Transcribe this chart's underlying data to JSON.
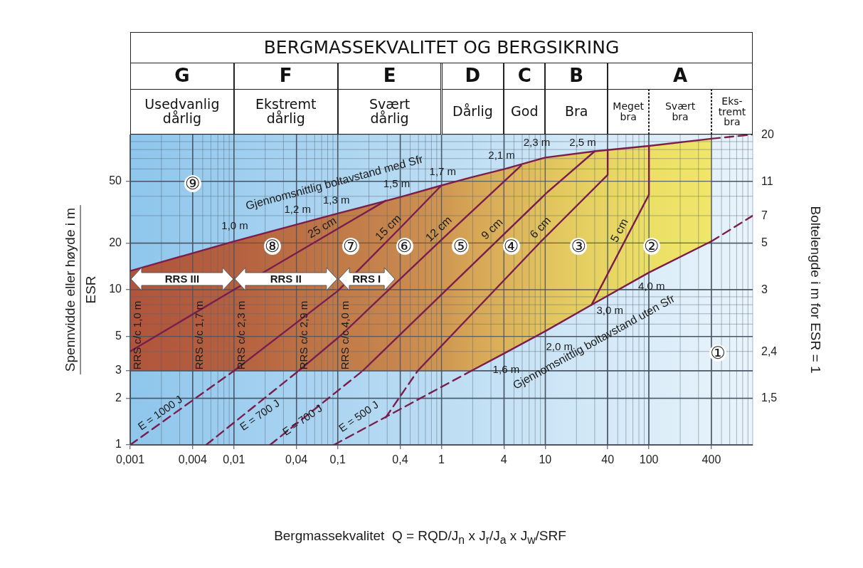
{
  "chart_data": {
    "type": "line",
    "title": "BERGMASSEKVALITET OG BERGSIKRING",
    "xlabel": "Bergmassekvalitet  Q = RQD/J$_{n}$ x J$_{r}$/J$_{a}$ x J$_{w}$/SRF",
    "ylabel": "Spennvidde eller høyde i m\nESR",
    "y2label": "Boltelengde i m for ESR = 1",
    "log": "xy",
    "grid": true,
    "xlim": [
      0.001,
      1000
    ],
    "xticks": [
      {
        "value": 0.001,
        "label": "0,001"
      },
      {
        "value": 0.004,
        "label": "0,004"
      },
      {
        "value": 0.01,
        "label": "0,01"
      },
      {
        "value": 0.04,
        "label": "0,04"
      },
      {
        "value": 0.1,
        "label": "0,1"
      },
      {
        "value": 0.4,
        "label": "0,4"
      },
      1,
      4,
      10,
      40,
      100,
      400
    ],
    "ylim": [
      1,
      100
    ],
    "yticks": [
      1,
      2,
      3,
      5,
      10,
      20,
      50
    ],
    "series": [
      {
        "type": "line",
        "color": "#7a1e4e",
        "upper": [
          13.2,
          20.5,
          31,
          39.5,
          47,
          53,
          60,
          71,
          78,
          84.5,
          94
        ],
        "colors": [
          "#b0553c",
          "#b5603f",
          "#c07a48",
          "#c8874e",
          "#cf9652",
          "#d6a556",
          "#dcb25a",
          "#e2c35e",
          "#e6d262",
          "#ecdf66",
          "#f0e66a"
        ],
        "x": [
          0.001,
          0.01,
          0.1,
          0.4,
          1,
          1.94,
          4.07,
          10,
          30,
          100,
          400
        ],
        "values": [
          13.2,
          20.5,
          31,
          39.5,
          47,
          53,
          60,
          71,
          78,
          84.5,
          94
        ],
        "lower": [
          3,
          3,
          3,
          3,
          3,
          3,
          3.9,
          5.4,
          8.2,
          12.9,
          20.5
        ]
      },
      {
        "type": "line",
        "color": "#7a1e4e",
        "line_style": "dashed",
        "x": [
          400,
          1000
        ],
        "values": [
          94,
          100
        ]
      },
      {
        "type": "line",
        "color": "#7a1e4e",
        "x": [
          1.94,
          4.07,
          10,
          30,
          100,
          400
        ],
        "values": [
          3,
          3.9,
          5.4,
          8.2,
          12.9,
          20.5
        ]
      },
      {
        "type": "line",
        "color": "#7a1e4e",
        "line_style": "dashed",
        "x": [
          0.092,
          1.94
        ],
        "values": [
          1,
          3
        ]
      },
      {
        "type": "line",
        "color": "#7a1e4e",
        "line_style": "dashed",
        "x": [
          400,
          1000
        ],
        "values": [
          20.5,
          30
        ]
      },
      {
        "type": "line",
        "color": "#7a1e4e",
        "x": [
          0.001,
          0.01,
          0.29
        ],
        "values": [
          4,
          10,
          37.5
        ]
      },
      {
        "type": "line",
        "color": "#7a1e4e",
        "x": [
          0.01,
          0.1,
          0.4,
          1
        ],
        "values": [
          3,
          9.8,
          25,
          47
        ]
      },
      {
        "type": "line",
        "color": "#7a1e4e",
        "x": [
          0.042,
          0.108,
          1,
          5.85
        ],
        "values": [
          3,
          5.1,
          21,
          63
        ]
      },
      {
        "type": "line",
        "color": "#7a1e4e",
        "x": [
          0.174,
          1,
          10.5,
          30
        ],
        "values": [
          3,
          9.3,
          42.5,
          78
        ]
      },
      {
        "type": "line",
        "color": "#7a1e4e",
        "x": [
          0.59,
          9,
          40,
          40
        ],
        "values": [
          3,
          20.3,
          55,
          80
        ]
      },
      {
        "type": "line",
        "color": "#7a1e4e",
        "x": [
          28,
          100,
          100
        ],
        "values": [
          8,
          41,
          84.5
        ]
      },
      {
        "type": "line",
        "color": "#7a1e4e",
        "line_style": "dashed",
        "x": [
          0.001,
          0.01
        ],
        "values": [
          1,
          3
        ]
      },
      {
        "type": "line",
        "color": "#7a1e4e",
        "line_style": "dashed",
        "x": [
          0.0054,
          0.042
        ],
        "values": [
          1,
          3
        ]
      },
      {
        "type": "line",
        "color": "#7a1e4e",
        "line_style": "dashed",
        "x": [
          0.0223,
          0.174
        ],
        "values": [
          1,
          3
        ]
      },
      {
        "type": "line",
        "color": "#7a1e4e",
        "line_style": "dashed",
        "x": [
          0.29,
          0.59
        ],
        "values": [
          1.5,
          3
        ]
      }
    ],
    "annotations": [
      "G",
      "F",
      "E",
      "D",
      "C",
      "B",
      "A",
      "Usedvanlig\ndårlig",
      "Ekstremt\ndårlig",
      "Svært\ndårlig",
      "Dårlig",
      "God",
      "Bra",
      "Meget\nbra",
      "Svært\nbra",
      "Eks-\ntremt\nbra",
      "⑨",
      "⑧",
      "⑦",
      "⑥",
      "⑤",
      "④",
      "③",
      "②",
      "①",
      "1,0 m",
      "1,2 m",
      "1,3 m",
      "1,5 m",
      "1,7 m",
      "2,1 m",
      "2,3 m",
      "2,5 m",
      "1,6 m",
      "2,0 m",
      "3,0 m",
      "4,0 m",
      "Gjennomsnittlig boltavstand med Sfr",
      "Gjennomsnittlig boltavstand uten Sfr",
      "25 cm",
      "15 cm",
      "12 cm",
      "9 cm",
      "6 cm",
      "5 cm",
      "RRS c/c 1,0 m",
      "RRS  c/c 1,7 m",
      "RRS  c/c 2,3 m",
      "RRS  c/c 2,9 m",
      "RRS  c/c 4,0 m",
      "E = 1000 J",
      "E = 700 J",
      "E = 700 J",
      "E = 500 J",
      "RRS III",
      "RRS II",
      "RRS I",
      "1,5",
      "2,4",
      "3",
      "5",
      "7",
      "11",
      "20"
    ]
  }
}
